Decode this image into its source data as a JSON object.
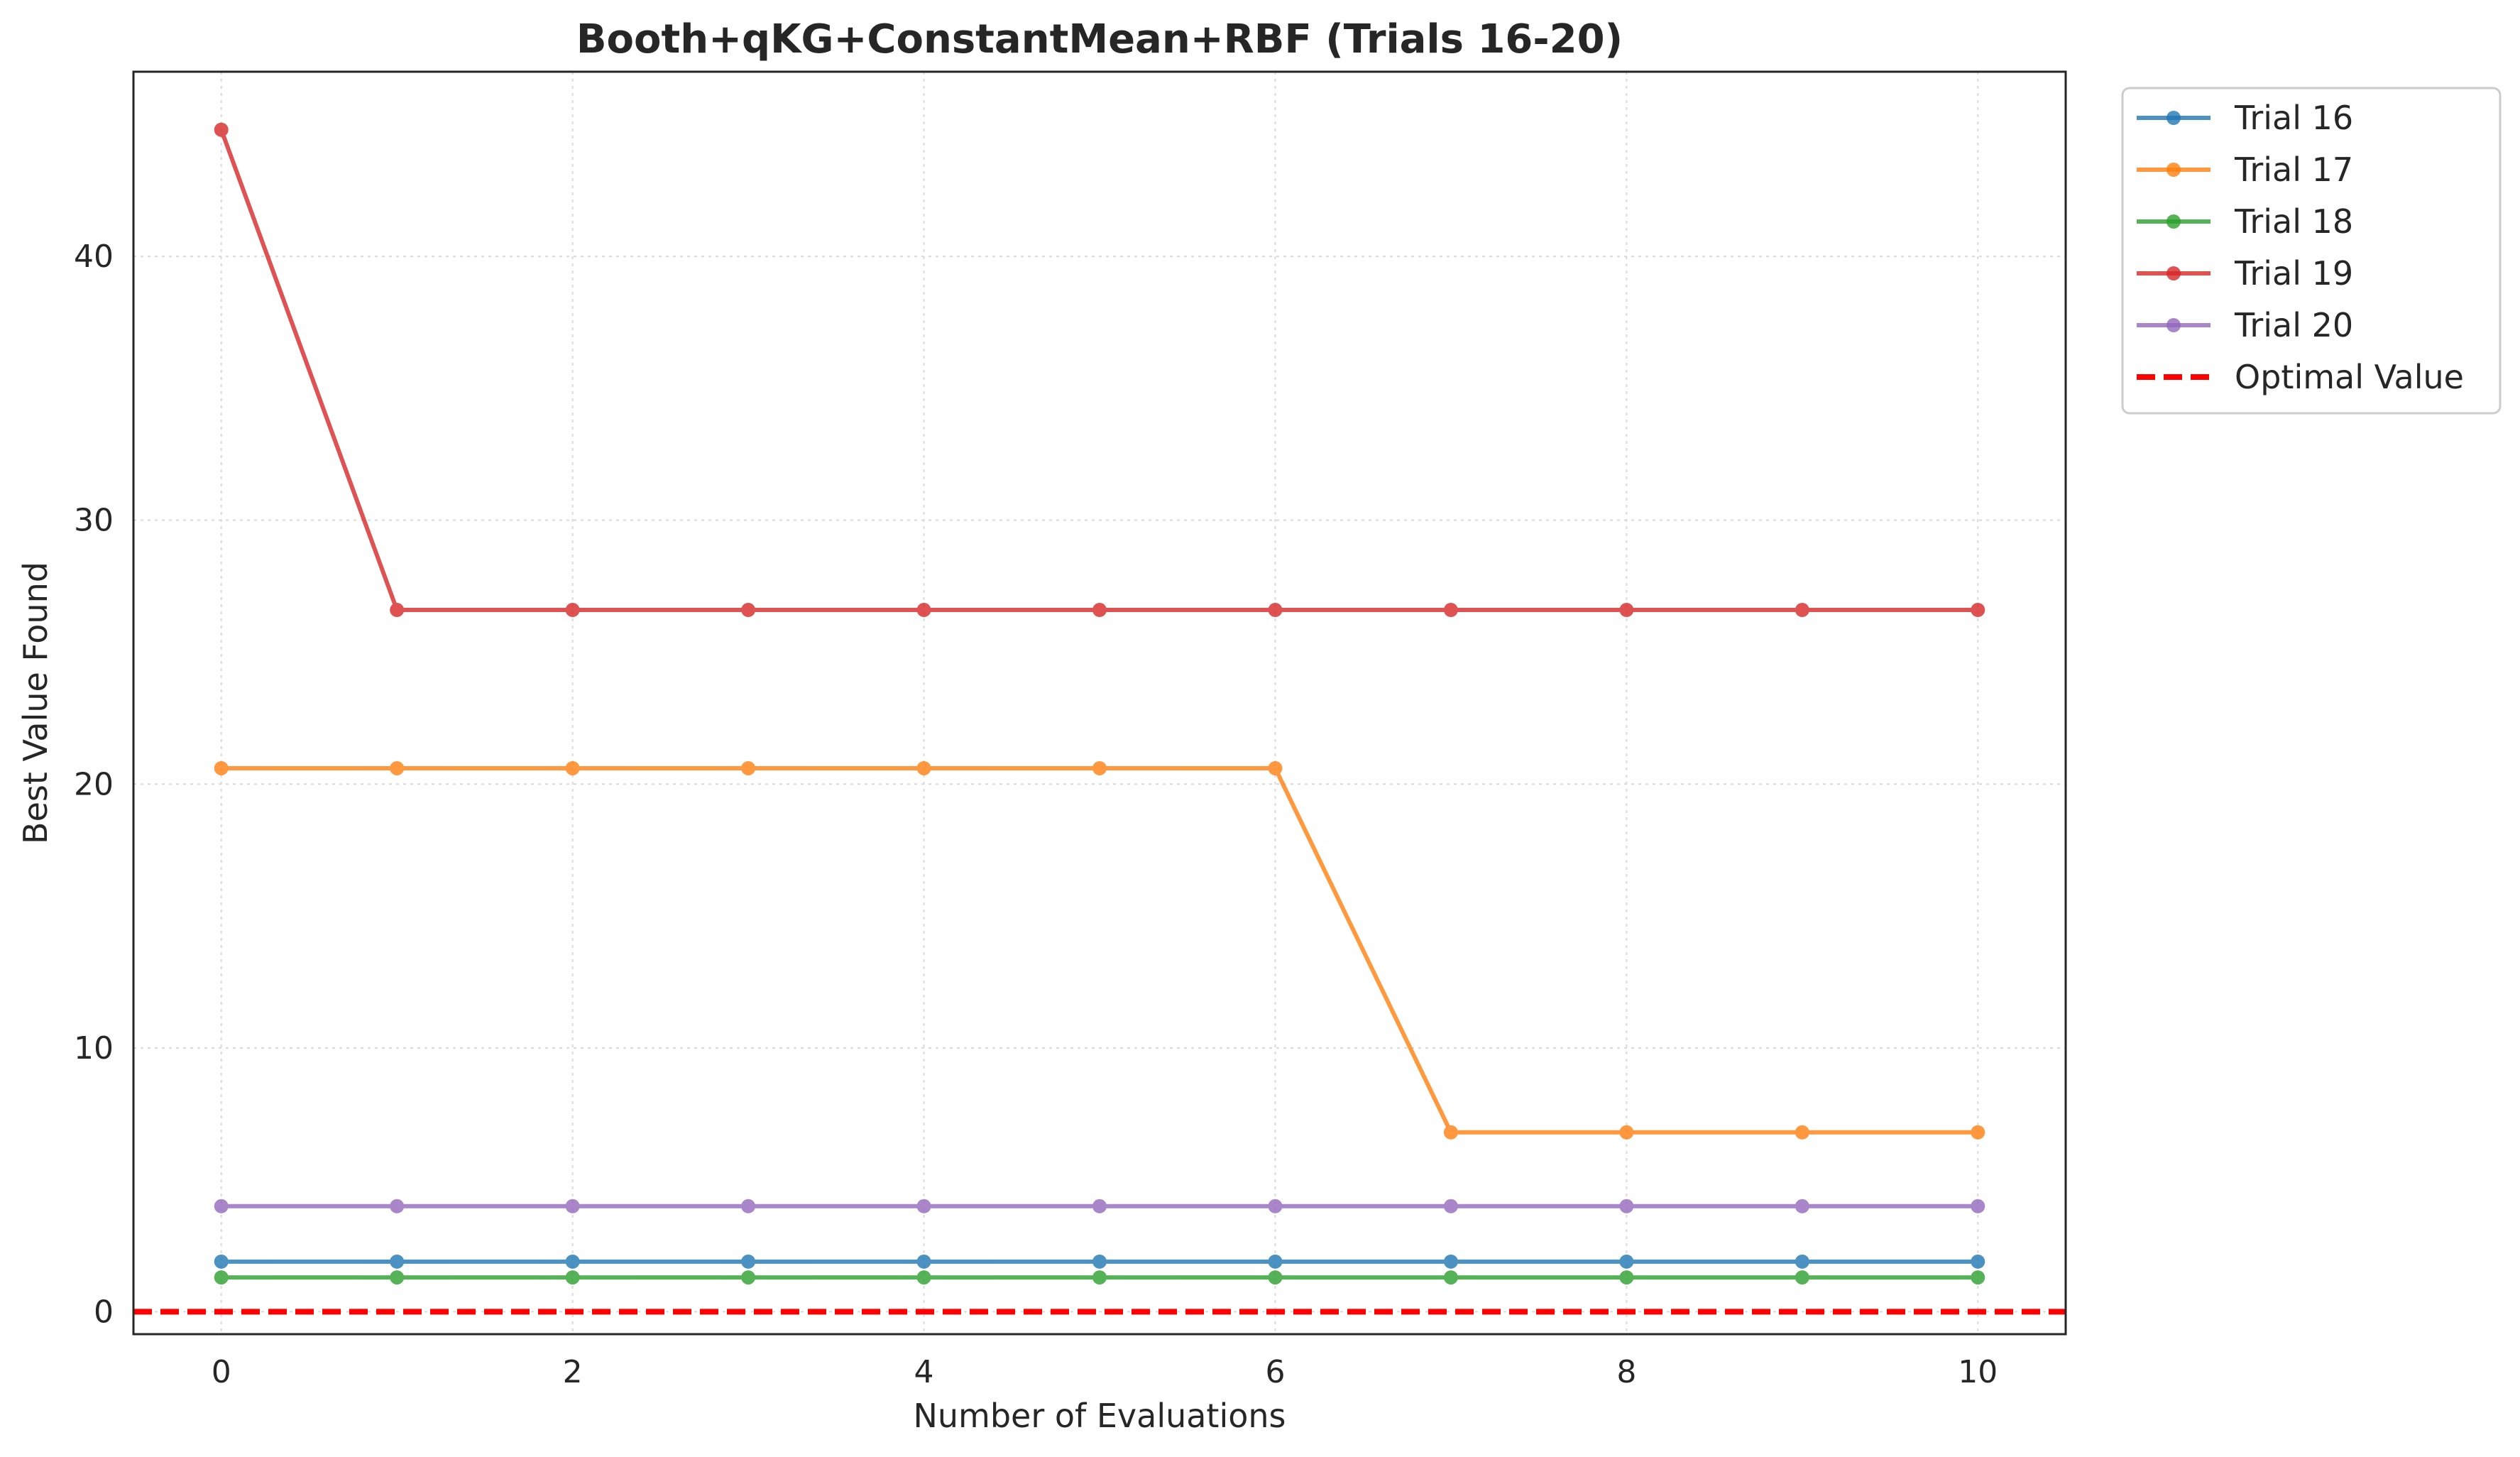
{
  "chart_data": {
    "type": "line",
    "title": "Booth+qKG+ConstantMean+RBF (Trials 16-20)",
    "xlabel": "Number of Evaluations",
    "ylabel": "Best Value Found",
    "x": [
      0,
      1,
      2,
      3,
      4,
      5,
      6,
      7,
      8,
      9,
      10
    ],
    "xlim": [
      -0.5,
      10.5
    ],
    "ylim": [
      -0.85,
      47.0
    ],
    "xticks": [
      0,
      2,
      4,
      6,
      8,
      10
    ],
    "yticks": [
      0,
      10,
      20,
      30,
      40
    ],
    "grid": true,
    "legend_position": "outside top-right",
    "series": [
      {
        "name": "Trial 16",
        "color": "#1f77b4",
        "values": [
          1.9,
          1.9,
          1.9,
          1.9,
          1.9,
          1.9,
          1.9,
          1.9,
          1.9,
          1.9,
          1.9
        ]
      },
      {
        "name": "Trial 17",
        "color": "#ff7f0e",
        "values": [
          20.6,
          20.6,
          20.6,
          20.6,
          20.6,
          20.6,
          20.6,
          6.8,
          6.8,
          6.8,
          6.8
        ]
      },
      {
        "name": "Trial 18",
        "color": "#2ca02c",
        "values": [
          1.3,
          1.3,
          1.3,
          1.3,
          1.3,
          1.3,
          1.3,
          1.3,
          1.3,
          1.3,
          1.3
        ]
      },
      {
        "name": "Trial 19",
        "color": "#d62728",
        "values": [
          44.8,
          26.6,
          26.6,
          26.6,
          26.6,
          26.6,
          26.6,
          26.6,
          26.6,
          26.6,
          26.6
        ]
      },
      {
        "name": "Trial 20",
        "color": "#9467bd",
        "values": [
          4.0,
          4.0,
          4.0,
          4.0,
          4.0,
          4.0,
          4.0,
          4.0,
          4.0,
          4.0,
          4.0
        ]
      }
    ],
    "reference_line": {
      "name": "Optimal Value",
      "value": 0,
      "color": "#ff0000",
      "style": "dashed"
    }
  }
}
